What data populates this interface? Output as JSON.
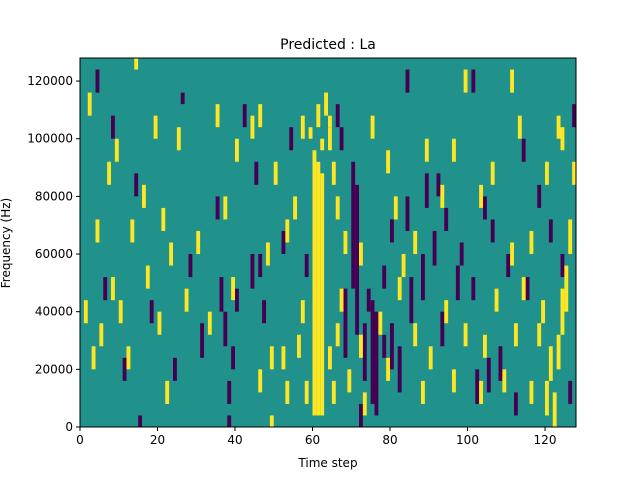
{
  "chart_data": {
    "type": "heatmap",
    "title": "Predicted : La",
    "xlabel": "Time step",
    "ylabel": "Frequency (Hz)",
    "xlim": [
      0,
      128
    ],
    "ylim": [
      0,
      128000
    ],
    "xticks": [
      0,
      20,
      40,
      60,
      80,
      100,
      120
    ],
    "yticks": [
      0,
      20000,
      40000,
      60000,
      80000,
      100000,
      120000
    ],
    "xtick_labels": [
      "0",
      "20",
      "40",
      "60",
      "80",
      "100",
      "120"
    ],
    "ytick_labels": [
      "0",
      "20000",
      "40000",
      "60000",
      "80000",
      "100000",
      "120000"
    ],
    "grid": false,
    "legend": false,
    "colors": {
      "background_value": "#21918c",
      "high_value": "#fde725",
      "low_value": "#440154"
    },
    "values_encoding": "background=0, high=1, low=-1; sparse cells listed as [time_step, frequency_bin_start_hz, frequency_bin_end_hz, value]",
    "bin_height_hz": 4000,
    "cells": [
      [
        60,
        4000,
        96000,
        1
      ],
      [
        61,
        4000,
        92000,
        1
      ],
      [
        62,
        4000,
        88000,
        1
      ],
      [
        61,
        104000,
        112000,
        1
      ],
      [
        59,
        100000,
        104000,
        1
      ],
      [
        63,
        108000,
        116000,
        1
      ],
      [
        64,
        104000,
        108000,
        1
      ],
      [
        62,
        96000,
        100000,
        1
      ],
      [
        70,
        48000,
        92000,
        -1
      ],
      [
        71,
        32000,
        84000,
        -1
      ],
      [
        68,
        24000,
        48000,
        -1
      ],
      [
        73,
        16000,
        36000,
        -1
      ],
      [
        75,
        8000,
        44000,
        -1
      ],
      [
        76,
        4000,
        40000,
        -1
      ],
      [
        78,
        24000,
        32000,
        -1
      ],
      [
        80,
        20000,
        36000,
        -1
      ],
      [
        82,
        12000,
        28000,
        -1
      ],
      [
        85,
        36000,
        52000,
        -1
      ],
      [
        88,
        44000,
        60000,
        -1
      ],
      [
        93,
        28000,
        40000,
        -1
      ],
      [
        97,
        44000,
        56000,
        -1
      ],
      [
        102,
        8000,
        20000,
        -1
      ],
      [
        105,
        12000,
        24000,
        -1
      ],
      [
        108,
        16000,
        28000,
        -1
      ],
      [
        112,
        4000,
        12000,
        -1
      ],
      [
        84,
        68000,
        80000,
        -1
      ],
      [
        89,
        76000,
        88000,
        -1
      ],
      [
        91,
        56000,
        68000,
        -1
      ],
      [
        38,
        0,
        4000,
        -1
      ],
      [
        39,
        20000,
        28000,
        -1
      ],
      [
        40,
        40000,
        48000,
        -1
      ],
      [
        37,
        28000,
        40000,
        -1
      ],
      [
        36,
        40000,
        52000,
        -1
      ],
      [
        44,
        48000,
        60000,
        -1
      ],
      [
        46,
        52000,
        60000,
        -1
      ],
      [
        47,
        36000,
        44000,
        -1
      ],
      [
        31,
        24000,
        36000,
        -1
      ],
      [
        35,
        72000,
        80000,
        -1
      ],
      [
        38,
        8000,
        16000,
        -1
      ],
      [
        18,
        36000,
        44000,
        -1
      ],
      [
        14,
        80000,
        88000,
        -1
      ],
      [
        15,
        0,
        4000,
        -1
      ],
      [
        11,
        16000,
        24000,
        -1
      ],
      [
        8,
        100000,
        108000,
        -1
      ],
      [
        4,
        116000,
        124000,
        -1
      ],
      [
        6,
        44000,
        52000,
        -1
      ],
      [
        24,
        16000,
        24000,
        -1
      ],
      [
        26,
        112000,
        116000,
        -1
      ],
      [
        28,
        52000,
        60000,
        -1
      ],
      [
        42,
        104000,
        112000,
        -1
      ],
      [
        45,
        84000,
        92000,
        -1
      ],
      [
        52,
        60000,
        68000,
        -1
      ],
      [
        54,
        96000,
        104000,
        -1
      ],
      [
        58,
        52000,
        60000,
        -1
      ],
      [
        66,
        104000,
        112000,
        -1
      ],
      [
        67,
        96000,
        104000,
        -1
      ],
      [
        72,
        0,
        8000,
        -1
      ],
      [
        74,
        40000,
        48000,
        -1
      ],
      [
        78,
        48000,
        56000,
        -1
      ],
      [
        80,
        64000,
        72000,
        -1
      ],
      [
        92,
        80000,
        88000,
        -1
      ],
      [
        94,
        68000,
        76000,
        -1
      ],
      [
        98,
        56000,
        64000,
        -1
      ],
      [
        101,
        44000,
        52000,
        -1
      ],
      [
        104,
        72000,
        80000,
        -1
      ],
      [
        106,
        64000,
        72000,
        -1
      ],
      [
        110,
        52000,
        60000,
        -1
      ],
      [
        114,
        92000,
        100000,
        -1
      ],
      [
        118,
        76000,
        84000,
        -1
      ],
      [
        121,
        64000,
        72000,
        -1
      ],
      [
        124,
        52000,
        60000,
        -1
      ],
      [
        126,
        8000,
        16000,
        -1
      ],
      [
        127,
        104000,
        112000,
        -1
      ],
      [
        84,
        116000,
        124000,
        -1
      ],
      [
        101,
        116000,
        124000,
        -1
      ],
      [
        115,
        44000,
        52000,
        -1
      ],
      [
        49,
        0,
        4000,
        1
      ],
      [
        46,
        12000,
        20000,
        1
      ],
      [
        49,
        20000,
        28000,
        1
      ],
      [
        52,
        20000,
        28000,
        1
      ],
      [
        53,
        8000,
        16000,
        1
      ],
      [
        56,
        24000,
        32000,
        1
      ],
      [
        57,
        36000,
        44000,
        1
      ],
      [
        58,
        8000,
        16000,
        1
      ],
      [
        64,
        20000,
        28000,
        1
      ],
      [
        65,
        8000,
        16000,
        1
      ],
      [
        66,
        28000,
        36000,
        1
      ],
      [
        67,
        40000,
        48000,
        1
      ],
      [
        69,
        12000,
        20000,
        1
      ],
      [
        72,
        24000,
        32000,
        1
      ],
      [
        73,
        4000,
        12000,
        1
      ],
      [
        77,
        32000,
        40000,
        1
      ],
      [
        79,
        16000,
        24000,
        1
      ],
      [
        82,
        44000,
        52000,
        1
      ],
      [
        86,
        28000,
        36000,
        1
      ],
      [
        88,
        8000,
        16000,
        1
      ],
      [
        90,
        20000,
        28000,
        1
      ],
      [
        94,
        36000,
        44000,
        1
      ],
      [
        96,
        12000,
        20000,
        1
      ],
      [
        99,
        28000,
        36000,
        1
      ],
      [
        103,
        8000,
        16000,
        1
      ],
      [
        104,
        24000,
        32000,
        1
      ],
      [
        107,
        40000,
        48000,
        1
      ],
      [
        109,
        12000,
        20000,
        1
      ],
      [
        111,
        56000,
        64000,
        1
      ],
      [
        112,
        28000,
        36000,
        1
      ],
      [
        114,
        44000,
        52000,
        1
      ],
      [
        116,
        8000,
        16000,
        1
      ],
      [
        118,
        28000,
        36000,
        1
      ],
      [
        119,
        36000,
        44000,
        1
      ],
      [
        120,
        4000,
        16000,
        1
      ],
      [
        121,
        16000,
        28000,
        1
      ],
      [
        122,
        0,
        12000,
        1
      ],
      [
        123,
        20000,
        32000,
        1
      ],
      [
        124,
        32000,
        48000,
        1
      ],
      [
        125,
        40000,
        56000,
        1
      ],
      [
        126,
        60000,
        72000,
        1
      ],
      [
        127,
        84000,
        92000,
        1
      ],
      [
        124,
        96000,
        104000,
        1
      ],
      [
        123,
        100000,
        108000,
        1
      ],
      [
        120,
        84000,
        92000,
        1
      ],
      [
        116,
        60000,
        68000,
        1
      ],
      [
        113,
        100000,
        108000,
        1
      ],
      [
        111,
        116000,
        124000,
        1
      ],
      [
        106,
        84000,
        92000,
        1
      ],
      [
        103,
        76000,
        84000,
        1
      ],
      [
        99,
        116000,
        124000,
        1
      ],
      [
        96,
        92000,
        100000,
        1
      ],
      [
        93,
        76000,
        84000,
        1
      ],
      [
        89,
        92000,
        100000,
        1
      ],
      [
        86,
        60000,
        68000,
        1
      ],
      [
        83,
        52000,
        60000,
        1
      ],
      [
        81,
        72000,
        80000,
        1
      ],
      [
        79,
        88000,
        96000,
        1
      ],
      [
        75,
        100000,
        108000,
        1
      ],
      [
        72,
        56000,
        64000,
        1
      ],
      [
        68,
        60000,
        68000,
        1
      ],
      [
        66,
        72000,
        80000,
        1
      ],
      [
        65,
        84000,
        92000,
        1
      ],
      [
        64,
        96000,
        104000,
        1
      ],
      [
        57,
        100000,
        108000,
        1
      ],
      [
        55,
        72000,
        80000,
        1
      ],
      [
        53,
        64000,
        72000,
        1
      ],
      [
        50,
        84000,
        92000,
        1
      ],
      [
        48,
        56000,
        64000,
        1
      ],
      [
        46,
        104000,
        112000,
        1
      ],
      [
        44,
        100000,
        108000,
        1
      ],
      [
        40,
        92000,
        100000,
        1
      ],
      [
        39,
        44000,
        52000,
        1
      ],
      [
        37,
        72000,
        80000,
        1
      ],
      [
        35,
        104000,
        112000,
        1
      ],
      [
        33,
        32000,
        40000,
        1
      ],
      [
        30,
        60000,
        68000,
        1
      ],
      [
        27,
        40000,
        48000,
        1
      ],
      [
        25,
        96000,
        104000,
        1
      ],
      [
        23,
        56000,
        64000,
        1
      ],
      [
        22,
        8000,
        16000,
        1
      ],
      [
        21,
        68000,
        76000,
        1
      ],
      [
        20,
        32000,
        40000,
        1
      ],
      [
        19,
        100000,
        108000,
        1
      ],
      [
        17,
        48000,
        56000,
        1
      ],
      [
        16,
        76000,
        84000,
        1
      ],
      [
        14,
        124000,
        128000,
        1
      ],
      [
        13,
        64000,
        72000,
        1
      ],
      [
        12,
        20000,
        28000,
        1
      ],
      [
        10,
        36000,
        44000,
        1
      ],
      [
        9,
        92000,
        100000,
        1
      ],
      [
        8,
        44000,
        52000,
        1
      ],
      [
        7,
        84000,
        92000,
        1
      ],
      [
        5,
        28000,
        36000,
        1
      ],
      [
        4,
        64000,
        72000,
        1
      ],
      [
        3,
        20000,
        28000,
        1
      ],
      [
        2,
        108000,
        116000,
        1
      ],
      [
        1,
        36000,
        44000,
        1
      ]
    ]
  }
}
